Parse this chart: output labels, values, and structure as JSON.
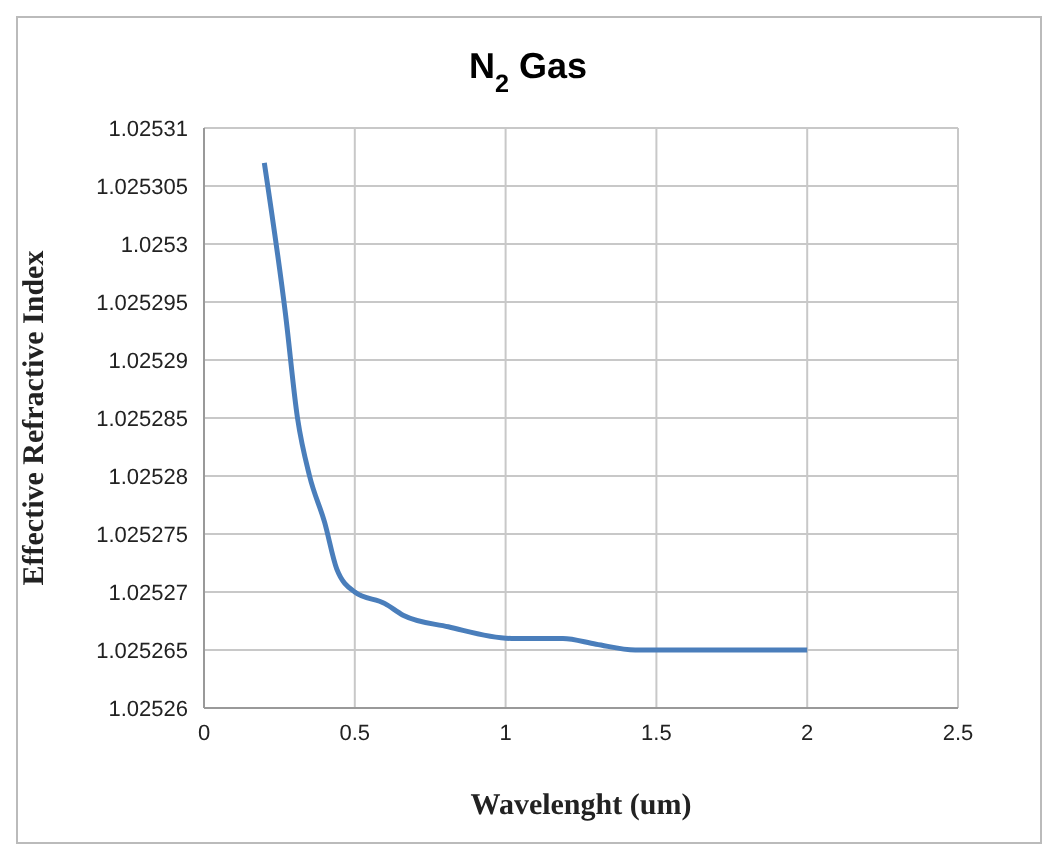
{
  "chart_data": {
    "type": "line",
    "title": "N$_{2}$ Gas",
    "xlabel": "Wavelenght (um)",
    "ylabel": "Effective  Refractive  Index",
    "x": [
      0.2,
      0.27,
      0.31,
      0.35,
      0.4,
      0.44,
      0.5,
      0.6,
      0.66,
      0.81,
      1.02,
      1.19,
      1.3,
      1.43,
      1.6,
      2
    ],
    "series": [
      {
        "color": "#4a7ebb",
        "values": [
          1.025307,
          1.025294,
          1.025285,
          1.02528,
          1.025276,
          1.025272,
          1.02527,
          1.025269,
          1.025268,
          1.025267,
          1.025266,
          1.025266,
          1.0252655,
          1.025265,
          1.025265,
          1.025265
        ]
      }
    ],
    "xlim": [
      0,
      2.5
    ],
    "xticks": [
      0,
      0.5,
      1,
      1.5,
      2,
      2.5
    ],
    "ylim": [
      1.02526,
      1.02531
    ],
    "yticks": [
      1.02526,
      1.025265,
      1.02527,
      1.025275,
      1.02528,
      1.025285,
      1.02529,
      1.025295,
      1.0253,
      1.025305,
      1.02531
    ],
    "grid": true,
    "legend": false,
    "marker": "none",
    "line_style": "solid"
  }
}
